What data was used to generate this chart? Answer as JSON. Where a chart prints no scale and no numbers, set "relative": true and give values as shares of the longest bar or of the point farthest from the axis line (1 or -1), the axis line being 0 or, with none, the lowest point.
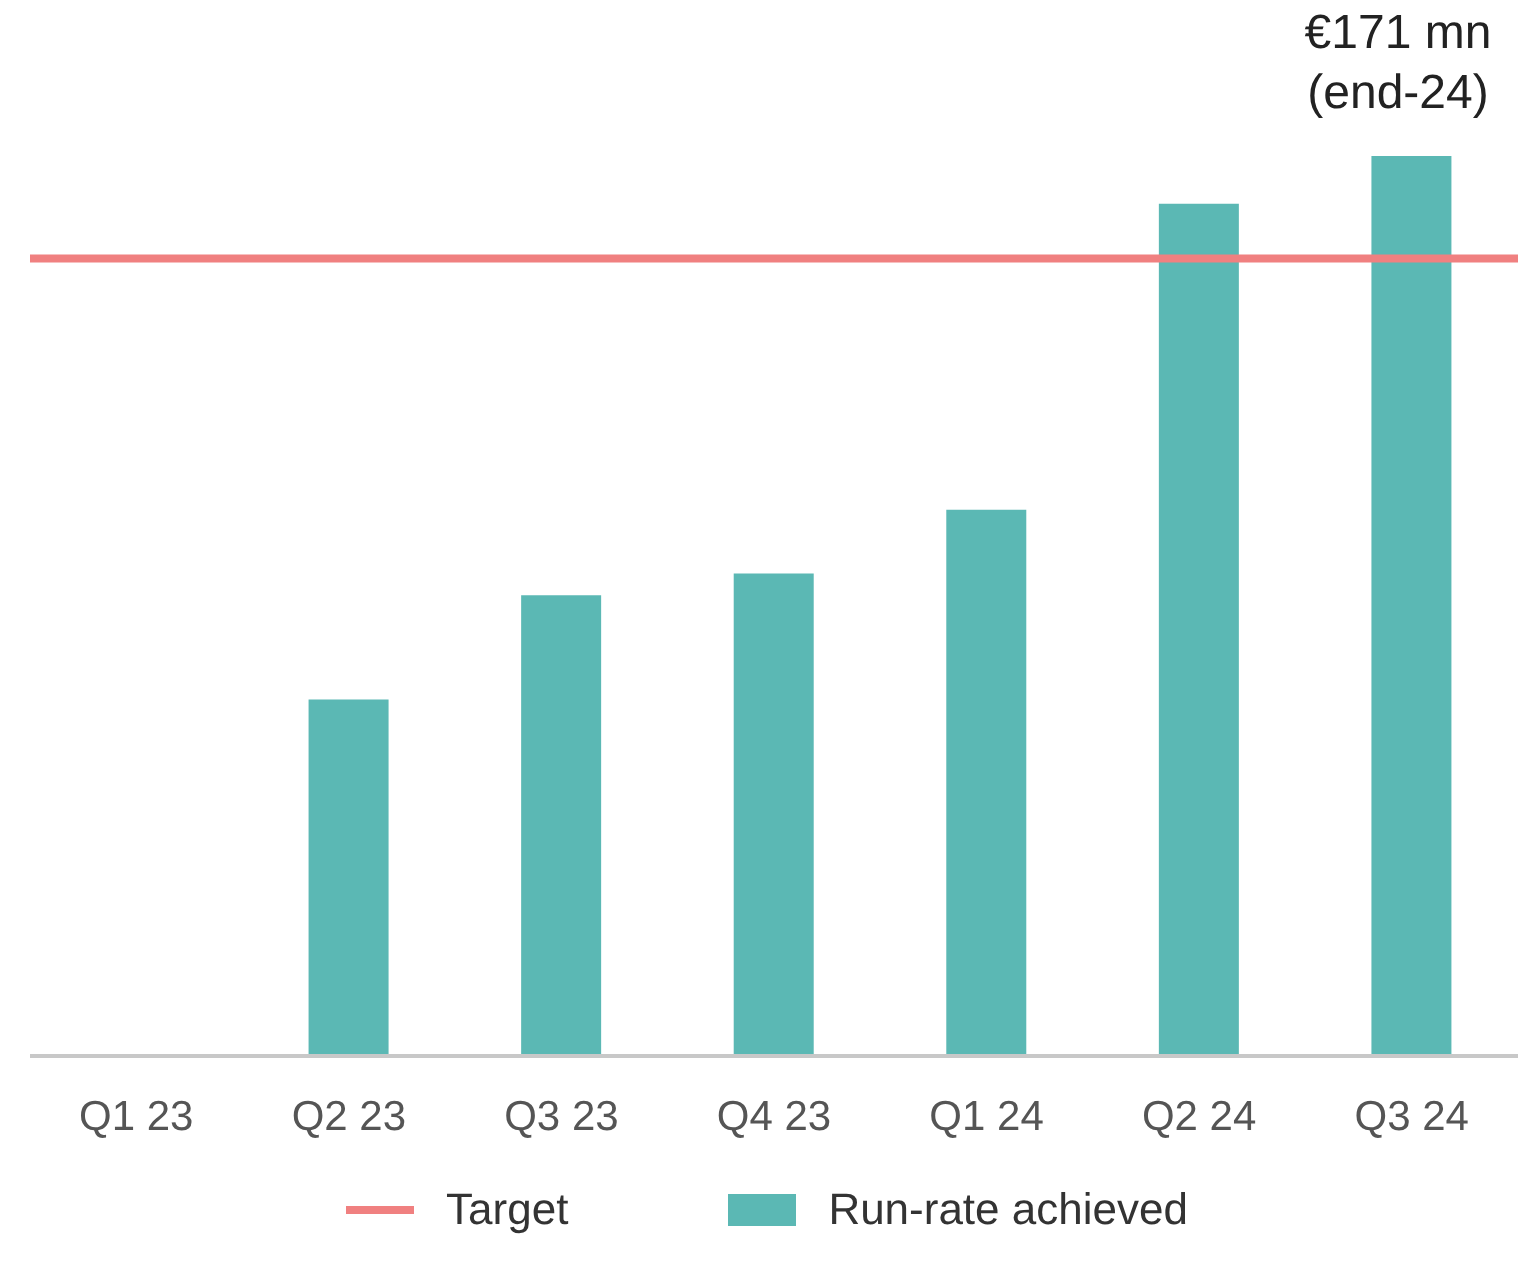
{
  "chart_data": {
    "type": "bar",
    "relative": true,
    "categories": [
      "Q1 23",
      "Q2 23",
      "Q3 23",
      "Q4 23",
      "Q1 24",
      "Q2 24",
      "Q3 24"
    ],
    "series": [
      {
        "name": "Run-rate achieved",
        "color": "#5bb8b4",
        "values": [
          0,
          0.396,
          0.512,
          0.536,
          0.607,
          0.947,
          1
        ]
      }
    ],
    "ref_lines": [
      {
        "axis": "y",
        "value": 0.886,
        "label": "Target",
        "color": "#f08080"
      }
    ],
    "annotations": [
      "€171 mn (end-24)"
    ],
    "legend": "bottom",
    "grid": false
  }
}
